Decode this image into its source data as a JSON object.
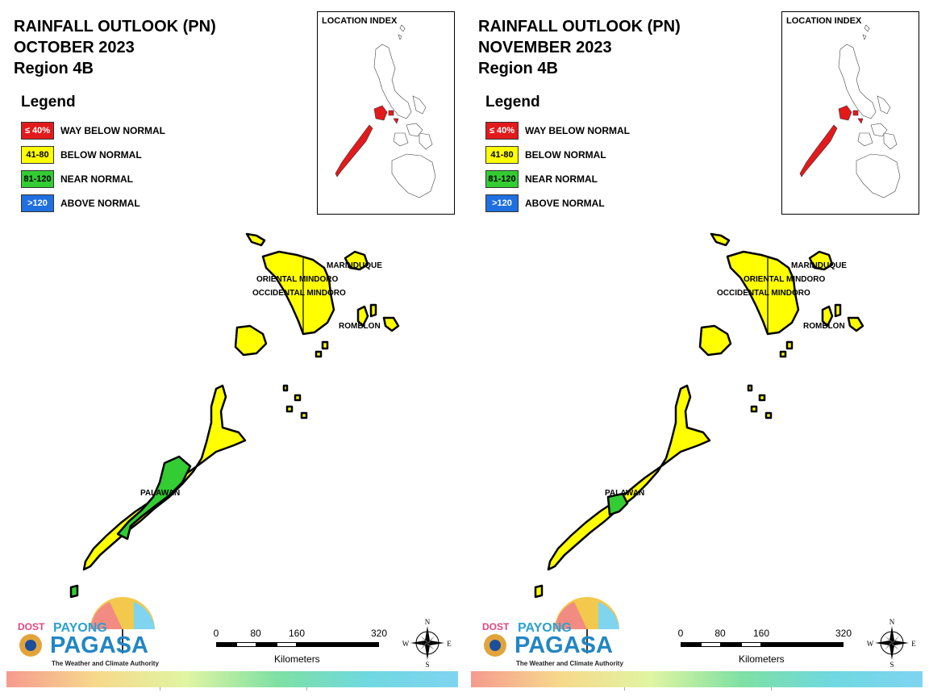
{
  "panels": [
    {
      "title_line1": "RAINFALL OUTLOOK (PN)",
      "title_line2": "OCTOBER 2023",
      "title_line3": "Region 4B",
      "palawan_color": "mixed-yellow-green"
    },
    {
      "title_line1": "RAINFALL OUTLOOK (PN)",
      "title_line2": "NOVEMBER 2023",
      "title_line3": "Region 4B",
      "palawan_color": "mostly-yellow-small-green"
    }
  ],
  "legend": {
    "title": "Legend",
    "items": [
      {
        "code": "≤ 40%",
        "label": "WAY BELOW NORMAL",
        "color": "#e31a1c",
        "text_color": "#ffffff"
      },
      {
        "code": "41-80",
        "label": "BELOW NORMAL",
        "color": "#ffff00",
        "text_color": "#000000"
      },
      {
        "code": "81-120",
        "label": "NEAR NORMAL",
        "color": "#33a02c",
        "text_color": "#000000"
      },
      {
        "code": ">120",
        "label": "ABOVE NORMAL",
        "color": "#1f6fe0",
        "text_color": "#ffffff"
      }
    ]
  },
  "location_index": {
    "title": "LOCATION INDEX",
    "highlight_color": "#e31a1c"
  },
  "provinces": {
    "marinduque": "MARINDUQUE",
    "oriental_mindoro": "ORIENTAL MINDORO",
    "occidental_mindoro": "OCCIDENTAL MINDORO",
    "romblon": "ROMBLON",
    "palawan": "PALAWAN"
  },
  "scale_bar": {
    "ticks": [
      "0",
      "80",
      "160",
      "320"
    ],
    "unit": "Kilometers"
  },
  "compass": {
    "n": "N",
    "s": "S",
    "e": "E",
    "w": "W"
  },
  "logo": {
    "dost": "DOST",
    "payong": "PAYONG",
    "pagasa": "PAGASA",
    "tagline": "The Weather and Climate Authority"
  },
  "colors": {
    "yellow": "#ffff00",
    "green": "#33a02c",
    "red": "#e31a1c",
    "blue": "#1f6fe0"
  }
}
